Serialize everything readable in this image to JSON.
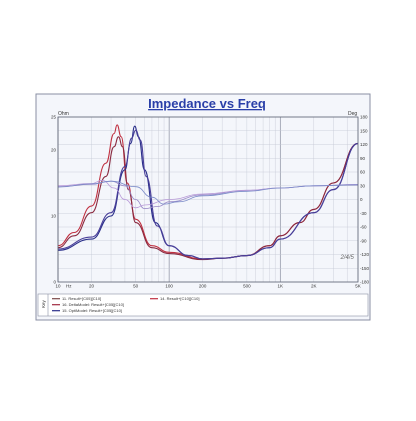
{
  "chart_data": {
    "type": "line",
    "title": "Impedance vs Freq",
    "xscale": "log",
    "xlim": [
      10,
      5000
    ],
    "x_ticks": [
      {
        "value": 10,
        "label": "10"
      },
      {
        "value": 20,
        "label": "20"
      },
      {
        "value": 50,
        "label": "50"
      },
      {
        "value": 100,
        "label": "100"
      },
      {
        "value": 200,
        "label": "200"
      },
      {
        "value": 500,
        "label": "500"
      },
      {
        "value": 1000,
        "label": "1K"
      },
      {
        "value": 2000,
        "label": "2K"
      },
      {
        "value": 5000,
        "label": "5K"
      }
    ],
    "x_unit": "Hz",
    "left_axis": {
      "label": "Ohm",
      "ylim": [
        0,
        25
      ],
      "ticks": [
        {
          "value": 0,
          "label": "0"
        },
        {
          "value": 10,
          "label": "10"
        },
        {
          "value": 20,
          "label": "20"
        },
        {
          "value": 25,
          "label": "25"
        }
      ]
    },
    "right_axis": {
      "label": "Deg",
      "ylim": [
        -180,
        180
      ],
      "ticks": [
        {
          "value": 180,
          "label": "180"
        },
        {
          "value": 150,
          "label": "150"
        },
        {
          "value": 120,
          "label": "120"
        },
        {
          "value": 90,
          "label": "90"
        },
        {
          "value": 60,
          "label": "60"
        },
        {
          "value": 30,
          "label": "30"
        },
        {
          "value": 0,
          "label": "0"
        },
        {
          "value": -30,
          "label": "-30"
        },
        {
          "value": -60,
          "label": "-60"
        },
        {
          "value": -90,
          "label": "-90"
        },
        {
          "value": -120,
          "label": "-120"
        },
        {
          "value": -150,
          "label": "-150"
        },
        {
          "value": -180,
          "label": "-180"
        }
      ]
    },
    "grid": true,
    "legend_position": "bottom",
    "legend_side_label": "Key",
    "legend": [
      {
        "label": "11. Result+[C05][C10]",
        "color": "#7a4a4a"
      },
      {
        "label": "16. DeltaModel: Result+[C05][C10]",
        "color": "#a02a40"
      },
      {
        "label": "14. Result+[C10][C10]",
        "color": "#c03040"
      },
      {
        "label": "15. OptiModel: Result+[C05][C10]",
        "color": "#2a2f8a"
      }
    ],
    "annotations": [
      {
        "text": "2/4/5",
        "x": 4000,
        "y_ohm": 3.5
      }
    ],
    "series": [
      {
        "axis": "left",
        "color": "#c03040",
        "points": [
          [
            10,
            5.5
          ],
          [
            14,
            7.5
          ],
          [
            20,
            11.5
          ],
          [
            27,
            18
          ],
          [
            32,
            22.5
          ],
          [
            34,
            23.8
          ],
          [
            37,
            22
          ],
          [
            42,
            15
          ],
          [
            50,
            9.5
          ],
          [
            70,
            5.5
          ],
          [
            100,
            4.5
          ],
          [
            200,
            3.5
          ],
          [
            300,
            3.6
          ],
          [
            500,
            4
          ],
          [
            800,
            5.5
          ],
          [
            1000,
            7
          ],
          [
            1500,
            9
          ],
          [
            2000,
            11
          ],
          [
            3000,
            15
          ],
          [
            5000,
            21
          ]
        ]
      },
      {
        "axis": "left",
        "color": "#8a2a40",
        "points": [
          [
            10,
            5.2
          ],
          [
            14,
            7
          ],
          [
            20,
            10.5
          ],
          [
            27,
            16
          ],
          [
            32,
            20.5
          ],
          [
            35,
            22
          ],
          [
            38,
            20.5
          ],
          [
            43,
            14
          ],
          [
            50,
            9
          ],
          [
            70,
            5.2
          ],
          [
            100,
            4.3
          ],
          [
            200,
            3.4
          ],
          [
            300,
            3.6
          ],
          [
            500,
            4
          ],
          [
            800,
            5.5
          ],
          [
            1000,
            7
          ],
          [
            1500,
            9
          ],
          [
            2000,
            11
          ],
          [
            3000,
            15
          ],
          [
            5000,
            21
          ]
        ]
      },
      {
        "axis": "left",
        "color": "#2a2f8a",
        "points": [
          [
            10,
            4.8
          ],
          [
            20,
            6.5
          ],
          [
            30,
            10
          ],
          [
            40,
            17
          ],
          [
            45,
            21
          ],
          [
            49,
            23.6
          ],
          [
            53,
            22
          ],
          [
            60,
            17
          ],
          [
            75,
            9
          ],
          [
            100,
            5.5
          ],
          [
            150,
            4
          ],
          [
            200,
            3.5
          ],
          [
            300,
            3.6
          ],
          [
            500,
            4
          ],
          [
            800,
            5.2
          ],
          [
            1000,
            6.5
          ],
          [
            2000,
            10.5
          ],
          [
            3000,
            14
          ],
          [
            5000,
            21
          ]
        ]
      },
      {
        "axis": "left",
        "color": "#4a3f9a",
        "points": [
          [
            10,
            5
          ],
          [
            20,
            6.8
          ],
          [
            30,
            10.5
          ],
          [
            40,
            17.5
          ],
          [
            46,
            21.8
          ],
          [
            50,
            23
          ],
          [
            55,
            21.5
          ],
          [
            62,
            16
          ],
          [
            78,
            8.5
          ],
          [
            100,
            5.5
          ],
          [
            150,
            4
          ],
          [
            200,
            3.5
          ],
          [
            300,
            3.6
          ],
          [
            500,
            4
          ],
          [
            800,
            5.2
          ],
          [
            1000,
            6.5
          ],
          [
            2000,
            10.5
          ],
          [
            3000,
            14
          ],
          [
            5000,
            21
          ]
        ]
      },
      {
        "axis": "right",
        "color": "#9a8ac8",
        "points": [
          [
            10,
            28
          ],
          [
            20,
            33
          ],
          [
            30,
            40
          ],
          [
            40,
            30
          ],
          [
            50,
            0
          ],
          [
            60,
            -20
          ],
          [
            80,
            -15
          ],
          [
            100,
            -5
          ],
          [
            200,
            10
          ],
          [
            500,
            20
          ],
          [
            1000,
            25
          ],
          [
            2000,
            30
          ],
          [
            5000,
            32
          ]
        ]
      },
      {
        "axis": "right",
        "color": "#b89ad8",
        "points": [
          [
            10,
            30
          ],
          [
            20,
            35
          ],
          [
            25,
            42
          ],
          [
            32,
            25
          ],
          [
            40,
            0
          ],
          [
            50,
            -18
          ],
          [
            60,
            -12
          ],
          [
            100,
            0
          ],
          [
            200,
            12
          ],
          [
            500,
            20
          ],
          [
            1000,
            25
          ],
          [
            2000,
            30
          ],
          [
            5000,
            33
          ]
        ]
      },
      {
        "axis": "right",
        "color": "#7a8ac8",
        "points": [
          [
            10,
            27
          ],
          [
            20,
            34
          ],
          [
            30,
            40
          ],
          [
            50,
            28
          ],
          [
            70,
            5
          ],
          [
            90,
            -10
          ],
          [
            120,
            -5
          ],
          [
            200,
            8
          ],
          [
            500,
            18
          ],
          [
            1000,
            25
          ],
          [
            2000,
            30
          ],
          [
            5000,
            32
          ]
        ]
      }
    ]
  }
}
